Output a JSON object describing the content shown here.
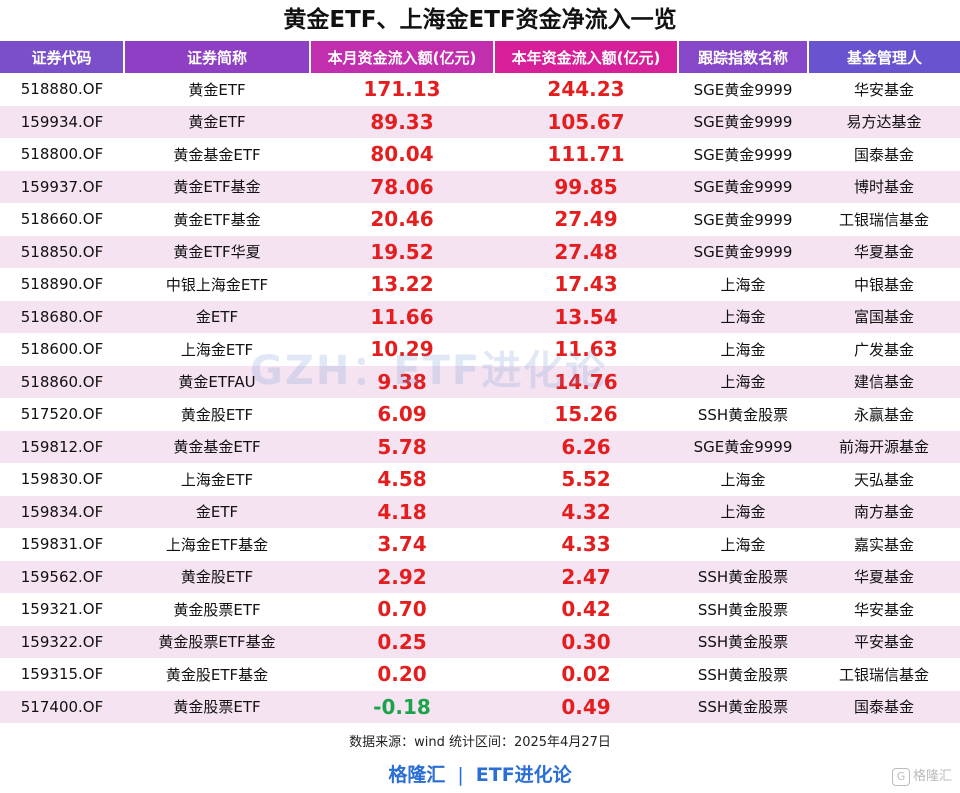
{
  "title": "黄金ETF、上海金ETF资金净流入一览",
  "columns": [
    "证券代码",
    "证券简称",
    "本月资金流入额(亿元)",
    "本年资金流入额(亿元)",
    "跟踪指数名称",
    "基金管理人"
  ],
  "rows": [
    {
      "code": "518880.OF",
      "name": "黄金ETF",
      "month": "171.13",
      "year": "244.23",
      "index": "SGE黄金9999",
      "manager": "华安基金"
    },
    {
      "code": "159934.OF",
      "name": "黄金ETF",
      "month": "89.33",
      "year": "105.67",
      "index": "SGE黄金9999",
      "manager": "易方达基金"
    },
    {
      "code": "518800.OF",
      "name": "黄金基金ETF",
      "month": "80.04",
      "year": "111.71",
      "index": "SGE黄金9999",
      "manager": "国泰基金"
    },
    {
      "code": "159937.OF",
      "name": "黄金ETF基金",
      "month": "78.06",
      "year": "99.85",
      "index": "SGE黄金9999",
      "manager": "博时基金"
    },
    {
      "code": "518660.OF",
      "name": "黄金ETF基金",
      "month": "20.46",
      "year": "27.49",
      "index": "SGE黄金9999",
      "manager": "工银瑞信基金"
    },
    {
      "code": "518850.OF",
      "name": "黄金ETF华夏",
      "month": "19.52",
      "year": "27.48",
      "index": "SGE黄金9999",
      "manager": "华夏基金"
    },
    {
      "code": "518890.OF",
      "name": "中银上海金ETF",
      "month": "13.22",
      "year": "17.43",
      "index": "上海金",
      "manager": "中银基金"
    },
    {
      "code": "518680.OF",
      "name": "金ETF",
      "month": "11.66",
      "year": "13.54",
      "index": "上海金",
      "manager": "富国基金"
    },
    {
      "code": "518600.OF",
      "name": "上海金ETF",
      "month": "10.29",
      "year": "11.63",
      "index": "上海金",
      "manager": "广发基金"
    },
    {
      "code": "518860.OF",
      "name": "黄金ETFAU",
      "month": "9.38",
      "year": "14.76",
      "index": "上海金",
      "manager": "建信基金"
    },
    {
      "code": "517520.OF",
      "name": "黄金股ETF",
      "month": "6.09",
      "year": "15.26",
      "index": "SSH黄金股票",
      "manager": "永赢基金"
    },
    {
      "code": "159812.OF",
      "name": "黄金基金ETF",
      "month": "5.78",
      "year": "6.26",
      "index": "SGE黄金9999",
      "manager": "前海开源基金"
    },
    {
      "code": "159830.OF",
      "name": "上海金ETF",
      "month": "4.58",
      "year": "5.52",
      "index": "上海金",
      "manager": "天弘基金"
    },
    {
      "code": "159834.OF",
      "name": "金ETF",
      "month": "4.18",
      "year": "4.32",
      "index": "上海金",
      "manager": "南方基金"
    },
    {
      "code": "159831.OF",
      "name": "上海金ETF基金",
      "month": "3.74",
      "year": "4.33",
      "index": "上海金",
      "manager": "嘉实基金"
    },
    {
      "code": "159562.OF",
      "name": "黄金股ETF",
      "month": "2.92",
      "year": "2.47",
      "index": "SSH黄金股票",
      "manager": "华夏基金"
    },
    {
      "code": "159321.OF",
      "name": "黄金股票ETF",
      "month": "0.70",
      "year": "0.42",
      "index": "SSH黄金股票",
      "manager": "华安基金"
    },
    {
      "code": "159322.OF",
      "name": "黄金股票ETF基金",
      "month": "0.25",
      "year": "0.30",
      "index": "SSH黄金股票",
      "manager": "平安基金"
    },
    {
      "code": "159315.OF",
      "name": "黄金股ETF基金",
      "month": "0.20",
      "year": "0.02",
      "index": "SSH黄金股票",
      "manager": "工银瑞信基金"
    },
    {
      "code": "517400.OF",
      "name": "黄金股票ETF",
      "month": "-0.18",
      "year": "0.49",
      "index": "SSH黄金股票",
      "manager": "国泰基金"
    }
  ],
  "watermark": "GZH：ETF进化论",
  "source": "数据来源：wind   统计区间：2025年4月27日",
  "footer": {
    "left": "格隆汇",
    "separator": "|",
    "right": "ETF进化论"
  },
  "corner_logo": "格隆汇",
  "colors": {
    "positive": "#e41e1e",
    "negative": "#1aa34a",
    "header_a": "#7a4fc9",
    "header_b": "#d61f99",
    "row_stripe": "#f5e3f2",
    "footer": "#2a6ed6"
  }
}
